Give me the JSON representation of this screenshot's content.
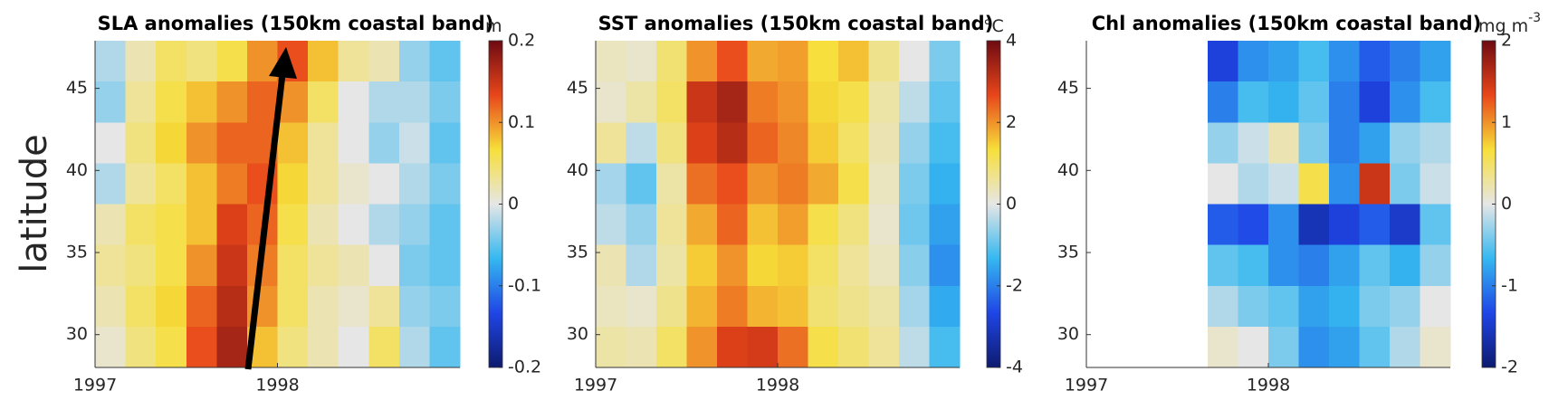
{
  "chart_data": [
    {
      "type": "heatmap",
      "title": "SLA anomalies (150km coastal band)",
      "ylabel": "latitude",
      "colorbar_label": "m",
      "xlim": [
        1997,
        1999
      ],
      "xticks": [
        1997,
        1998
      ],
      "ylim": [
        28,
        47.9
      ],
      "yticks": [
        30,
        35,
        40,
        45
      ],
      "clim": [
        -0.2,
        0.2
      ],
      "cticks": [
        -0.2,
        -0.1,
        0,
        0.1,
        0.2
      ],
      "colormap": [
        "#0d1b6e",
        "#1f45e6",
        "#35b8f0",
        "#e6e6e6",
        "#f7df3a",
        "#e8461a",
        "#6e0a12"
      ],
      "z": [
        [
          -0.02,
          0.02,
          0.05,
          0.04,
          0.06,
          0.1,
          0.13,
          0.08,
          0.03,
          0.02,
          -0.03,
          -0.05
        ],
        [
          -0.03,
          0.03,
          0.06,
          0.08,
          0.1,
          0.12,
          0.1,
          0.05,
          0.0,
          -0.02,
          -0.02,
          -0.04
        ],
        [
          0.0,
          0.04,
          0.07,
          0.1,
          0.12,
          0.12,
          0.08,
          0.03,
          0.0,
          -0.03,
          -0.01,
          -0.05
        ],
        [
          -0.02,
          0.03,
          0.05,
          0.08,
          0.11,
          0.13,
          0.07,
          0.03,
          0.01,
          0.0,
          -0.02,
          -0.04
        ],
        [
          0.02,
          0.05,
          0.06,
          0.08,
          0.14,
          0.12,
          0.06,
          0.02,
          0.0,
          -0.02,
          -0.03,
          -0.05
        ],
        [
          0.03,
          0.04,
          0.06,
          0.1,
          0.15,
          0.11,
          0.05,
          0.03,
          0.02,
          0.0,
          -0.04,
          -0.05
        ],
        [
          0.02,
          0.05,
          0.07,
          0.12,
          0.16,
          0.1,
          0.05,
          0.02,
          0.01,
          0.03,
          -0.03,
          -0.04
        ],
        [
          0.01,
          0.04,
          0.06,
          0.13,
          0.17,
          0.08,
          0.04,
          0.02,
          0.0,
          0.05,
          -0.02,
          -0.05
        ]
      ]
    },
    {
      "type": "heatmap",
      "title": "SST anomalies (150km coastal band)",
      "colorbar_label": "°C",
      "xlim": [
        1997,
        1999
      ],
      "xticks": [
        1997,
        1998
      ],
      "ylim": [
        28,
        47.9
      ],
      "yticks": [
        30,
        35,
        40,
        45
      ],
      "clim": [
        -4,
        4
      ],
      "cticks": [
        -4,
        -2,
        0,
        2,
        4
      ],
      "colormap": [
        "#0d1b6e",
        "#1f45e6",
        "#35b8f0",
        "#e6e6e6",
        "#f7df3a",
        "#e8461a",
        "#6e0a12"
      ],
      "z": [
        [
          0.3,
          0.2,
          0.9,
          2.0,
          2.6,
          1.8,
          1.9,
          1.3,
          1.6,
          0.7,
          0.0,
          -0.8
        ],
        [
          0.2,
          0.5,
          1.0,
          3.0,
          3.4,
          2.2,
          2.0,
          1.4,
          1.2,
          0.5,
          -0.3,
          -1.0
        ],
        [
          0.6,
          -0.3,
          0.8,
          2.8,
          3.2,
          2.4,
          2.1,
          1.5,
          1.0,
          0.4,
          -0.6,
          -1.2
        ],
        [
          -0.5,
          -1.0,
          0.5,
          2.3,
          2.6,
          2.0,
          2.2,
          1.8,
          1.2,
          0.3,
          -0.8,
          -1.4
        ],
        [
          -0.3,
          -0.6,
          0.6,
          1.8,
          2.4,
          1.6,
          1.9,
          1.2,
          0.8,
          0.2,
          -0.9,
          -1.6
        ],
        [
          0.4,
          -0.4,
          0.5,
          1.5,
          2.0,
          1.4,
          1.5,
          1.0,
          0.6,
          0.3,
          -0.7,
          -1.8
        ],
        [
          0.3,
          0.2,
          0.7,
          1.7,
          2.2,
          1.7,
          1.6,
          0.9,
          0.7,
          0.5,
          -0.5,
          -1.5
        ],
        [
          0.5,
          0.4,
          1.0,
          2.0,
          2.8,
          2.9,
          2.3,
          1.2,
          0.9,
          0.6,
          -0.3,
          -1.2
        ]
      ]
    },
    {
      "type": "heatmap",
      "title": "Chl anomalies (150km coastal band)",
      "colorbar_label": "mg m",
      "colorbar_label_sup": "-3",
      "xlim": [
        1997,
        1999
      ],
      "xticks": [
        1997,
        1998
      ],
      "ylim": [
        28,
        47.9
      ],
      "yticks": [
        30,
        35,
        40,
        45
      ],
      "clim": [
        -2,
        2
      ],
      "cticks": [
        -2,
        -1,
        0,
        1,
        2
      ],
      "colormap": [
        "#0d1b6e",
        "#1f45e6",
        "#35b8f0",
        "#e6e6e6",
        "#f7df3a",
        "#e8461a",
        "#6e0a12"
      ],
      "z": [
        [
          null,
          null,
          null,
          null,
          -1.4,
          -0.9,
          -0.8,
          -0.6,
          -0.9,
          -1.2,
          -1.0,
          -0.8
        ],
        [
          null,
          null,
          null,
          null,
          -1.0,
          -0.6,
          -0.7,
          -0.5,
          -1.0,
          -1.4,
          -0.9,
          -0.6
        ],
        [
          null,
          null,
          null,
          null,
          -0.3,
          -0.1,
          0.2,
          -0.4,
          -1.0,
          -0.8,
          -0.3,
          -0.2
        ],
        [
          null,
          null,
          null,
          null,
          0.0,
          -0.2,
          -0.1,
          0.6,
          -0.9,
          1.5,
          -0.4,
          -0.1
        ],
        [
          null,
          null,
          null,
          null,
          -1.2,
          -1.3,
          -0.9,
          -1.6,
          -1.4,
          -1.2,
          -1.5,
          -0.5
        ],
        [
          null,
          null,
          null,
          null,
          -0.5,
          -0.6,
          -0.9,
          -1.0,
          -0.8,
          -0.5,
          -0.7,
          -0.3
        ],
        [
          null,
          null,
          null,
          null,
          -0.2,
          -0.4,
          -0.5,
          -0.8,
          -0.7,
          -0.4,
          -0.3,
          0.0
        ],
        [
          null,
          null,
          null,
          null,
          0.1,
          0.0,
          -0.4,
          -0.9,
          -0.8,
          -0.5,
          -0.2,
          0.1
        ]
      ]
    }
  ]
}
